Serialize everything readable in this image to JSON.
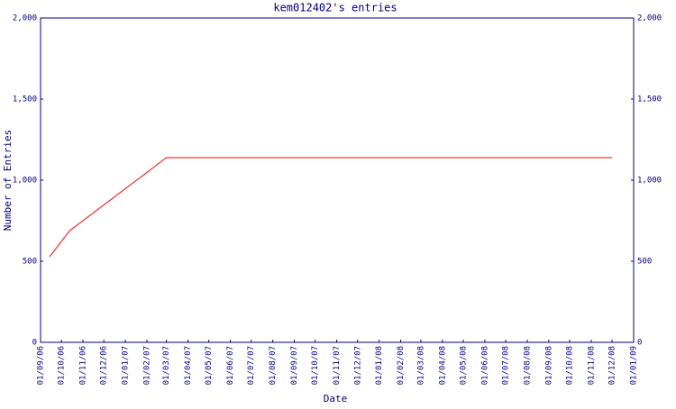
{
  "chart_data": {
    "type": "line",
    "title": "kem012402's entries",
    "x_label": "Date",
    "y_label": "Number of Entries",
    "x": [
      "2006-09-14",
      "2006-10-13",
      "2007-03-01",
      "2008-12-01"
    ],
    "values": [
      528,
      689,
      1139,
      1139
    ],
    "color": "#ff0000",
    "xlim": [
      "2006-09-01",
      "2009-01-01"
    ],
    "xticks": [
      {
        "value": "2006-09-01",
        "label": "01/09/06"
      },
      {
        "value": "2006-10-01",
        "label": "01/10/06"
      },
      {
        "value": "2006-11-01",
        "label": "01/11/06"
      },
      {
        "value": "2006-12-01",
        "label": "01/12/06"
      },
      {
        "value": "2007-01-01",
        "label": "01/01/07"
      },
      {
        "value": "2007-02-01",
        "label": "01/02/07"
      },
      {
        "value": "2007-03-01",
        "label": "01/03/07"
      },
      {
        "value": "2007-04-01",
        "label": "01/04/07"
      },
      {
        "value": "2007-05-01",
        "label": "01/05/07"
      },
      {
        "value": "2007-06-01",
        "label": "01/06/07"
      },
      {
        "value": "2007-07-01",
        "label": "01/07/07"
      },
      {
        "value": "2007-08-01",
        "label": "01/08/07"
      },
      {
        "value": "2007-09-01",
        "label": "01/09/07"
      },
      {
        "value": "2007-10-01",
        "label": "01/10/07"
      },
      {
        "value": "2007-11-01",
        "label": "01/11/07"
      },
      {
        "value": "2007-12-01",
        "label": "01/12/07"
      },
      {
        "value": "2008-01-01",
        "label": "01/01/08"
      },
      {
        "value": "2008-02-01",
        "label": "01/02/08"
      },
      {
        "value": "2008-03-01",
        "label": "01/03/08"
      },
      {
        "value": "2008-04-01",
        "label": "01/04/08"
      },
      {
        "value": "2008-05-01",
        "label": "01/05/08"
      },
      {
        "value": "2008-06-01",
        "label": "01/06/08"
      },
      {
        "value": "2008-07-01",
        "label": "01/07/08"
      },
      {
        "value": "2008-08-01",
        "label": "01/08/08"
      },
      {
        "value": "2008-09-01",
        "label": "01/09/08"
      },
      {
        "value": "2008-10-01",
        "label": "01/10/08"
      },
      {
        "value": "2008-11-01",
        "label": "01/11/08"
      },
      {
        "value": "2008-12-01",
        "label": "01/12/08"
      },
      {
        "value": "2009-01-01",
        "label": "01/01/09"
      }
    ],
    "ylim": [
      0,
      2000
    ],
    "yticks": [
      0,
      500,
      {
        "value": 1000,
        "label": "1,000"
      },
      {
        "value": 1500,
        "label": "1,500"
      },
      {
        "value": 2000,
        "label": "2,000"
      }
    ]
  }
}
